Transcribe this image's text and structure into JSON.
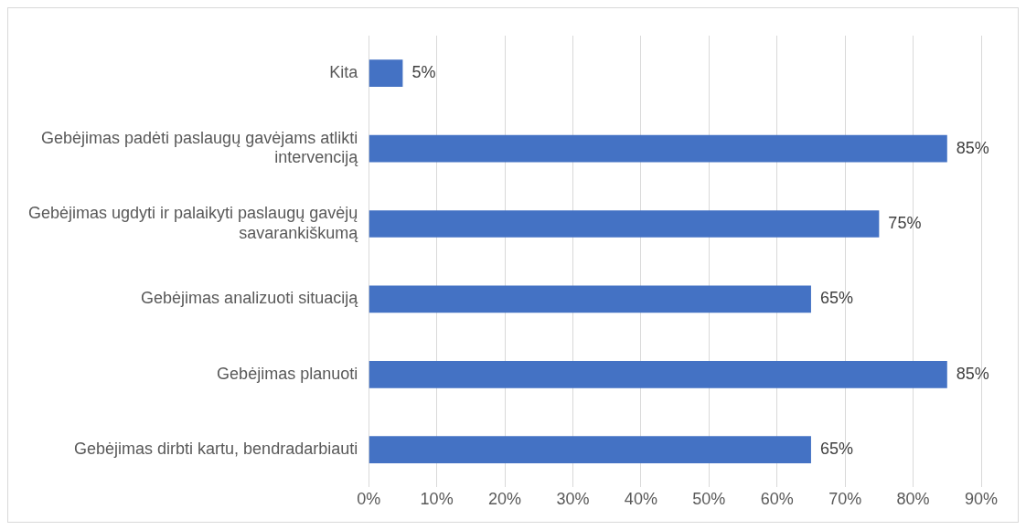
{
  "chart_data": {
    "type": "bar",
    "orientation": "horizontal",
    "categories": [
      "Kita",
      "Gebėjimas padėti paslaugų gavėjams atlikti intervenciją",
      "Gebėjimas ugdyti ir palaikyti paslaugų gavėjų savarankiškumą",
      "Gebėjimas analizuoti situaciją",
      "Gebėjimas planuoti",
      "Gebėjimas dirbti kartu, bendradarbiauti"
    ],
    "values": [
      5,
      85,
      75,
      65,
      85,
      65
    ],
    "value_labels": [
      "5%",
      "85%",
      "75%",
      "65%",
      "85%",
      "65%"
    ],
    "color": "#4472c4",
    "xlim": [
      0,
      90
    ],
    "xticks": [
      {
        "value": 0,
        "label": "0%"
      },
      {
        "value": 10,
        "label": "10%"
      },
      {
        "value": 20,
        "label": "20%"
      },
      {
        "value": 30,
        "label": "30%"
      },
      {
        "value": 40,
        "label": "40%"
      },
      {
        "value": 50,
        "label": "50%"
      },
      {
        "value": 60,
        "label": "60%"
      },
      {
        "value": 70,
        "label": "70%"
      },
      {
        "value": 80,
        "label": "80%"
      },
      {
        "value": 90,
        "label": "90%"
      }
    ],
    "grid": "x",
    "legend": false
  }
}
